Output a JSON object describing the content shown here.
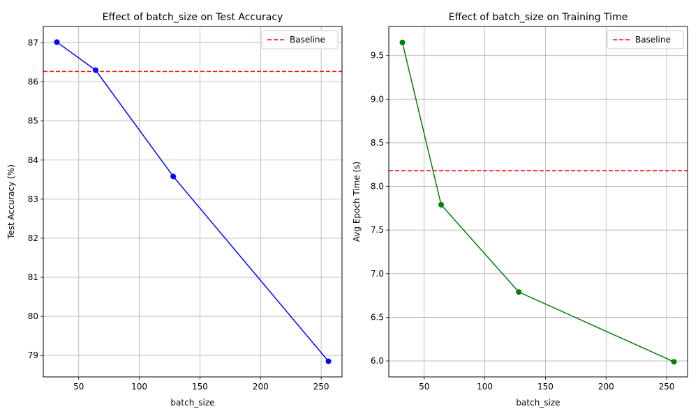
{
  "chart_data": [
    {
      "type": "line",
      "title": "Effect of batch_size on Test Accuracy",
      "xlabel": "batch_size",
      "ylabel": "Test Accuracy (%)",
      "x": [
        32,
        64,
        128,
        256
      ],
      "series": [
        {
          "name": "Test Accuracy",
          "values": [
            87.02,
            86.3,
            83.58,
            78.85
          ],
          "color": "#0000ff"
        }
      ],
      "baseline": {
        "label": "Baseline",
        "value": 86.27,
        "color": "#ff0000"
      },
      "xlim": [
        20.8,
        267.2
      ],
      "ylim": [
        78.45,
        87.42
      ],
      "xticks": [
        50,
        100,
        150,
        200,
        250
      ],
      "yticks": [
        79,
        80,
        81,
        82,
        83,
        84,
        85,
        86,
        87
      ],
      "ytick_labels": [
        "79",
        "80",
        "81",
        "82",
        "83",
        "84",
        "85",
        "86",
        "87"
      ],
      "legend_position": "upper right",
      "grid": true
    },
    {
      "type": "line",
      "title": "Effect of batch_size on Training Time",
      "xlabel": "batch_size",
      "ylabel": "Avg Epoch Time (s)",
      "x": [
        32,
        64,
        128,
        256
      ],
      "series": [
        {
          "name": "Avg Epoch Time",
          "values": [
            9.65,
            7.79,
            6.79,
            5.99
          ],
          "color": "#008000"
        }
      ],
      "baseline": {
        "label": "Baseline",
        "value": 8.18,
        "color": "#ff0000"
      },
      "xlim": [
        20.8,
        267.2
      ],
      "ylim": [
        5.817,
        9.833
      ],
      "xticks": [
        50,
        100,
        150,
        200,
        250
      ],
      "yticks": [
        6.0,
        6.5,
        7.0,
        7.5,
        8.0,
        8.5,
        9.0,
        9.5
      ],
      "ytick_labels": [
        "6.0",
        "6.5",
        "7.0",
        "7.5",
        "8.0",
        "8.5",
        "9.0",
        "9.5"
      ],
      "legend_position": "upper right",
      "grid": true
    }
  ]
}
